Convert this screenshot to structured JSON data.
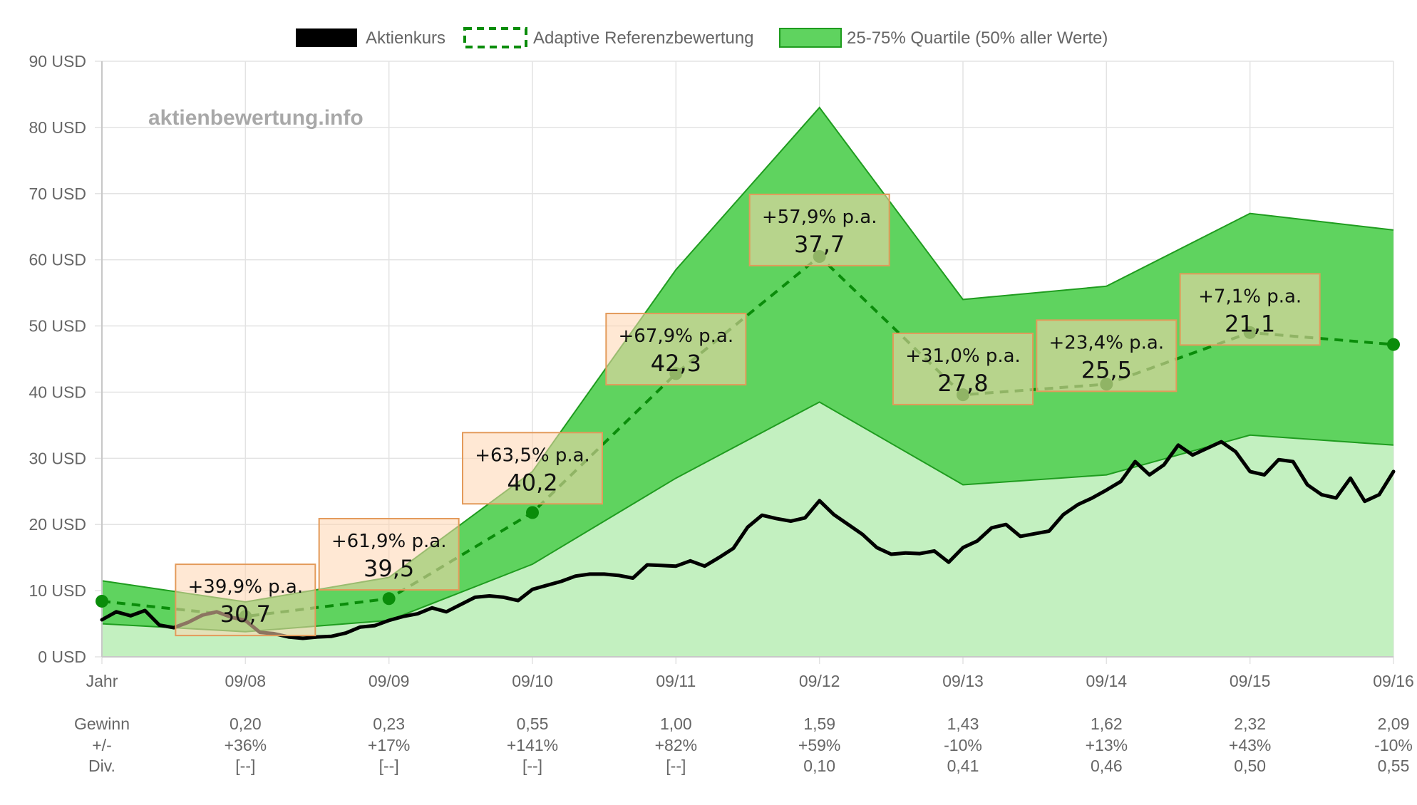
{
  "legend": [
    {
      "label": "Aktienkurs",
      "color": "#000000",
      "style": "solid"
    },
    {
      "label": "Adaptive Referenzbewertung",
      "color": "#0a8c0a",
      "style": "dashed"
    },
    {
      "label": "25-75% Quartile (50% aller Werte)",
      "color": "#5fd35f",
      "style": "fill"
    }
  ],
  "watermark": "aktienbewertung.info",
  "chart_data": {
    "type": "area",
    "y_unit": "USD",
    "ylim": [
      0,
      90
    ],
    "yticks": [
      0,
      10,
      20,
      30,
      40,
      50,
      60,
      70,
      80,
      90
    ],
    "ytick_labels": [
      "0 USD",
      "10 USD",
      "20 USD",
      "30 USD",
      "40 USD",
      "50 USD",
      "60 USD",
      "70 USD",
      "80 USD",
      "90 USD"
    ],
    "x_labels": [
      "Jahr",
      "09/08",
      "09/09",
      "09/10",
      "09/11",
      "09/12",
      "09/13",
      "09/14",
      "09/15",
      "09/16"
    ],
    "grid": true,
    "legend_position": "top-center",
    "colors": {
      "quartile_band": "#5fd35f",
      "lower_area": "#c3f0c0",
      "reference_line": "#0a8c0a",
      "price_line": "#000000"
    },
    "quartile_upper": [
      11.5,
      8.3,
      12.0,
      28.0,
      58.5,
      83.0,
      54.0,
      56.0,
      67.0,
      64.5
    ],
    "quartile_lower": [
      5.0,
      3.8,
      5.5,
      14.0,
      27.0,
      38.5,
      26.0,
      27.5,
      33.5,
      32.0
    ],
    "reference_values": [
      8.4,
      6.1,
      8.8,
      21.8,
      42.8,
      60.5,
      39.6,
      41.2,
      49.0,
      47.2
    ],
    "price_series": [
      [
        0.0,
        5.6
      ],
      [
        0.1,
        6.8
      ],
      [
        0.2,
        6.2
      ],
      [
        0.3,
        7.0
      ],
      [
        0.4,
        4.8
      ],
      [
        0.5,
        4.4
      ],
      [
        0.6,
        5.2
      ],
      [
        0.7,
        6.3
      ],
      [
        0.8,
        6.8
      ],
      [
        0.9,
        6.0
      ],
      [
        1.0,
        5.5
      ],
      [
        1.1,
        3.7
      ],
      [
        1.2,
        3.5
      ],
      [
        1.3,
        3.0
      ],
      [
        1.4,
        2.8
      ],
      [
        1.5,
        3.0
      ],
      [
        1.6,
        3.1
      ],
      [
        1.7,
        3.6
      ],
      [
        1.8,
        4.5
      ],
      [
        1.9,
        4.7
      ],
      [
        2.0,
        5.5
      ],
      [
        2.1,
        6.1
      ],
      [
        2.2,
        6.5
      ],
      [
        2.3,
        7.4
      ],
      [
        2.4,
        6.8
      ],
      [
        2.5,
        7.9
      ],
      [
        2.6,
        9.0
      ],
      [
        2.7,
        9.2
      ],
      [
        2.8,
        9.0
      ],
      [
        2.9,
        8.5
      ],
      [
        3.0,
        10.2
      ],
      [
        3.1,
        10.8
      ],
      [
        3.2,
        11.4
      ],
      [
        3.3,
        12.2
      ],
      [
        3.4,
        12.5
      ],
      [
        3.5,
        12.5
      ],
      [
        3.6,
        12.3
      ],
      [
        3.7,
        11.9
      ],
      [
        3.8,
        13.9
      ],
      [
        3.9,
        13.8
      ],
      [
        4.0,
        13.7
      ],
      [
        4.1,
        14.5
      ],
      [
        4.2,
        13.7
      ],
      [
        4.3,
        15.0
      ],
      [
        4.4,
        16.4
      ],
      [
        4.5,
        19.6
      ],
      [
        4.6,
        21.4
      ],
      [
        4.7,
        20.9
      ],
      [
        4.8,
        20.5
      ],
      [
        4.9,
        21.0
      ],
      [
        5.0,
        23.6
      ],
      [
        5.1,
        21.5
      ],
      [
        5.2,
        20.0
      ],
      [
        5.3,
        18.5
      ],
      [
        5.4,
        16.5
      ],
      [
        5.5,
        15.5
      ],
      [
        5.6,
        15.7
      ],
      [
        5.7,
        15.6
      ],
      [
        5.8,
        16.0
      ],
      [
        5.9,
        14.3
      ],
      [
        6.0,
        16.5
      ],
      [
        6.1,
        17.5
      ],
      [
        6.2,
        19.5
      ],
      [
        6.3,
        20.0
      ],
      [
        6.4,
        18.2
      ],
      [
        6.5,
        18.6
      ],
      [
        6.6,
        19.0
      ],
      [
        6.7,
        21.5
      ],
      [
        6.8,
        23.0
      ],
      [
        6.9,
        24.0
      ],
      [
        7.0,
        25.2
      ],
      [
        7.1,
        26.5
      ],
      [
        7.2,
        29.5
      ],
      [
        7.3,
        27.5
      ],
      [
        7.4,
        29.0
      ],
      [
        7.5,
        32.0
      ],
      [
        7.6,
        30.5
      ],
      [
        7.7,
        31.5
      ],
      [
        7.8,
        32.5
      ],
      [
        7.9,
        31.0
      ],
      [
        8.0,
        28.0
      ],
      [
        8.1,
        27.5
      ],
      [
        8.2,
        29.8
      ],
      [
        8.3,
        29.5
      ],
      [
        8.4,
        26.0
      ],
      [
        8.5,
        24.5
      ],
      [
        8.6,
        24.0
      ],
      [
        8.7,
        27.0
      ],
      [
        8.8,
        23.5
      ],
      [
        8.9,
        24.5
      ],
      [
        9.0,
        28.0
      ]
    ],
    "annotations": [
      {
        "x": 1,
        "y": 8.6,
        "top": "+39,9% p.a.",
        "bottom": "30,7"
      },
      {
        "x": 2,
        "y": 15.5,
        "top": "+61,9% p.a.",
        "bottom": "39,5"
      },
      {
        "x": 3,
        "y": 28.5,
        "top": "+63,5% p.a.",
        "bottom": "40,2"
      },
      {
        "x": 4,
        "y": 46.5,
        "top": "+67,9% p.a.",
        "bottom": "42,3"
      },
      {
        "x": 5,
        "y": 64.5,
        "top": "+57,9% p.a.",
        "bottom": "37,7"
      },
      {
        "x": 6,
        "y": 43.5,
        "top": "+31,0% p.a.",
        "bottom": "27,8"
      },
      {
        "x": 7,
        "y": 45.5,
        "top": "+23,4% p.a.",
        "bottom": "25,5"
      },
      {
        "x": 8,
        "y": 52.5,
        "top": "+7,1% p.a.",
        "bottom": "21,1"
      }
    ],
    "table_row_labels": [
      "Gewinn",
      "+/-",
      "Div."
    ],
    "table": [
      {
        "gewinn": "",
        "change": "",
        "div": ""
      },
      {
        "gewinn": "0,20",
        "change": "+36%",
        "div": "[--]"
      },
      {
        "gewinn": "0,23",
        "change": "+17%",
        "div": "[--]"
      },
      {
        "gewinn": "0,55",
        "change": "+141%",
        "div": "[--]"
      },
      {
        "gewinn": "1,00",
        "change": "+82%",
        "div": "[--]"
      },
      {
        "gewinn": "1,59",
        "change": "+59%",
        "div": "0,10"
      },
      {
        "gewinn": "1,43",
        "change": "-10%",
        "div": "0,41"
      },
      {
        "gewinn": "1,62",
        "change": "+13%",
        "div": "0,46"
      },
      {
        "gewinn": "2,32",
        "change": "+43%",
        "div": "0,50"
      },
      {
        "gewinn": "2,09",
        "change": "-10%",
        "div": "0,55"
      }
    ]
  }
}
